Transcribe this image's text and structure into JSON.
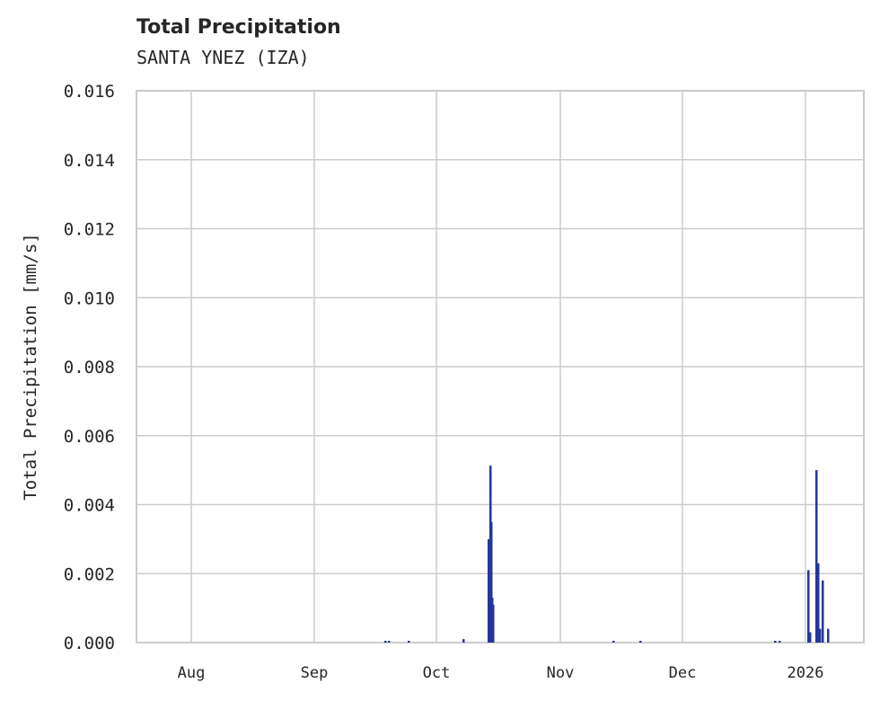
{
  "header": {
    "title": "Total Precipitation",
    "subtitle": "SANTA YNEZ (IZA)"
  },
  "chart_data": {
    "type": "bar",
    "title": "Total Precipitation",
    "subtitle": "SANTA YNEZ (IZA)",
    "xlabel": "",
    "ylabel": "Total Precipitation [mm/s]",
    "ylim": [
      0,
      0.016
    ],
    "yticks": [
      "0.000",
      "0.002",
      "0.004",
      "0.006",
      "0.008",
      "0.010",
      "0.012",
      "0.014",
      "0.016"
    ],
    "xticks": [
      "Aug",
      "Sep",
      "Oct",
      "Nov",
      "Dec",
      "2026"
    ],
    "grid": true,
    "color": "#24369b",
    "series": [
      {
        "name": "Total Precipitation",
        "points": [
          {
            "x": "Sep 20",
            "y": 5e-05
          },
          {
            "x": "Sep 21",
            "y": 5e-05
          },
          {
            "x": "Sep 24",
            "y": 5e-05
          },
          {
            "x": "Oct 2",
            "y": 0.0001
          },
          {
            "x": "Oct 13",
            "y": 0.003
          },
          {
            "x": "Oct 14",
            "y": 0.00513
          },
          {
            "x": "Oct 14b",
            "y": 0.0035
          },
          {
            "x": "Oct 15",
            "y": 0.0013
          },
          {
            "x": "Oct 15b",
            "y": 0.0011
          },
          {
            "x": "Nov 27",
            "y": 5e-05
          },
          {
            "x": "Dec 1",
            "y": 5e-05
          },
          {
            "x": "Dec 27",
            "y": 5e-05
          },
          {
            "x": "Dec 28",
            "y": 5e-05
          },
          {
            "x": "Jan 1",
            "y": 0.0021
          },
          {
            "x": "Jan 2",
            "y": 0.0003
          },
          {
            "x": "Jan 5",
            "y": 0.005
          },
          {
            "x": "Jan 5b",
            "y": 0.0023
          },
          {
            "x": "Jan 6",
            "y": 0.0004
          },
          {
            "x": "Jan 7",
            "y": 0.0018
          },
          {
            "x": "Jan 8",
            "y": 0.0004
          }
        ]
      }
    ]
  }
}
